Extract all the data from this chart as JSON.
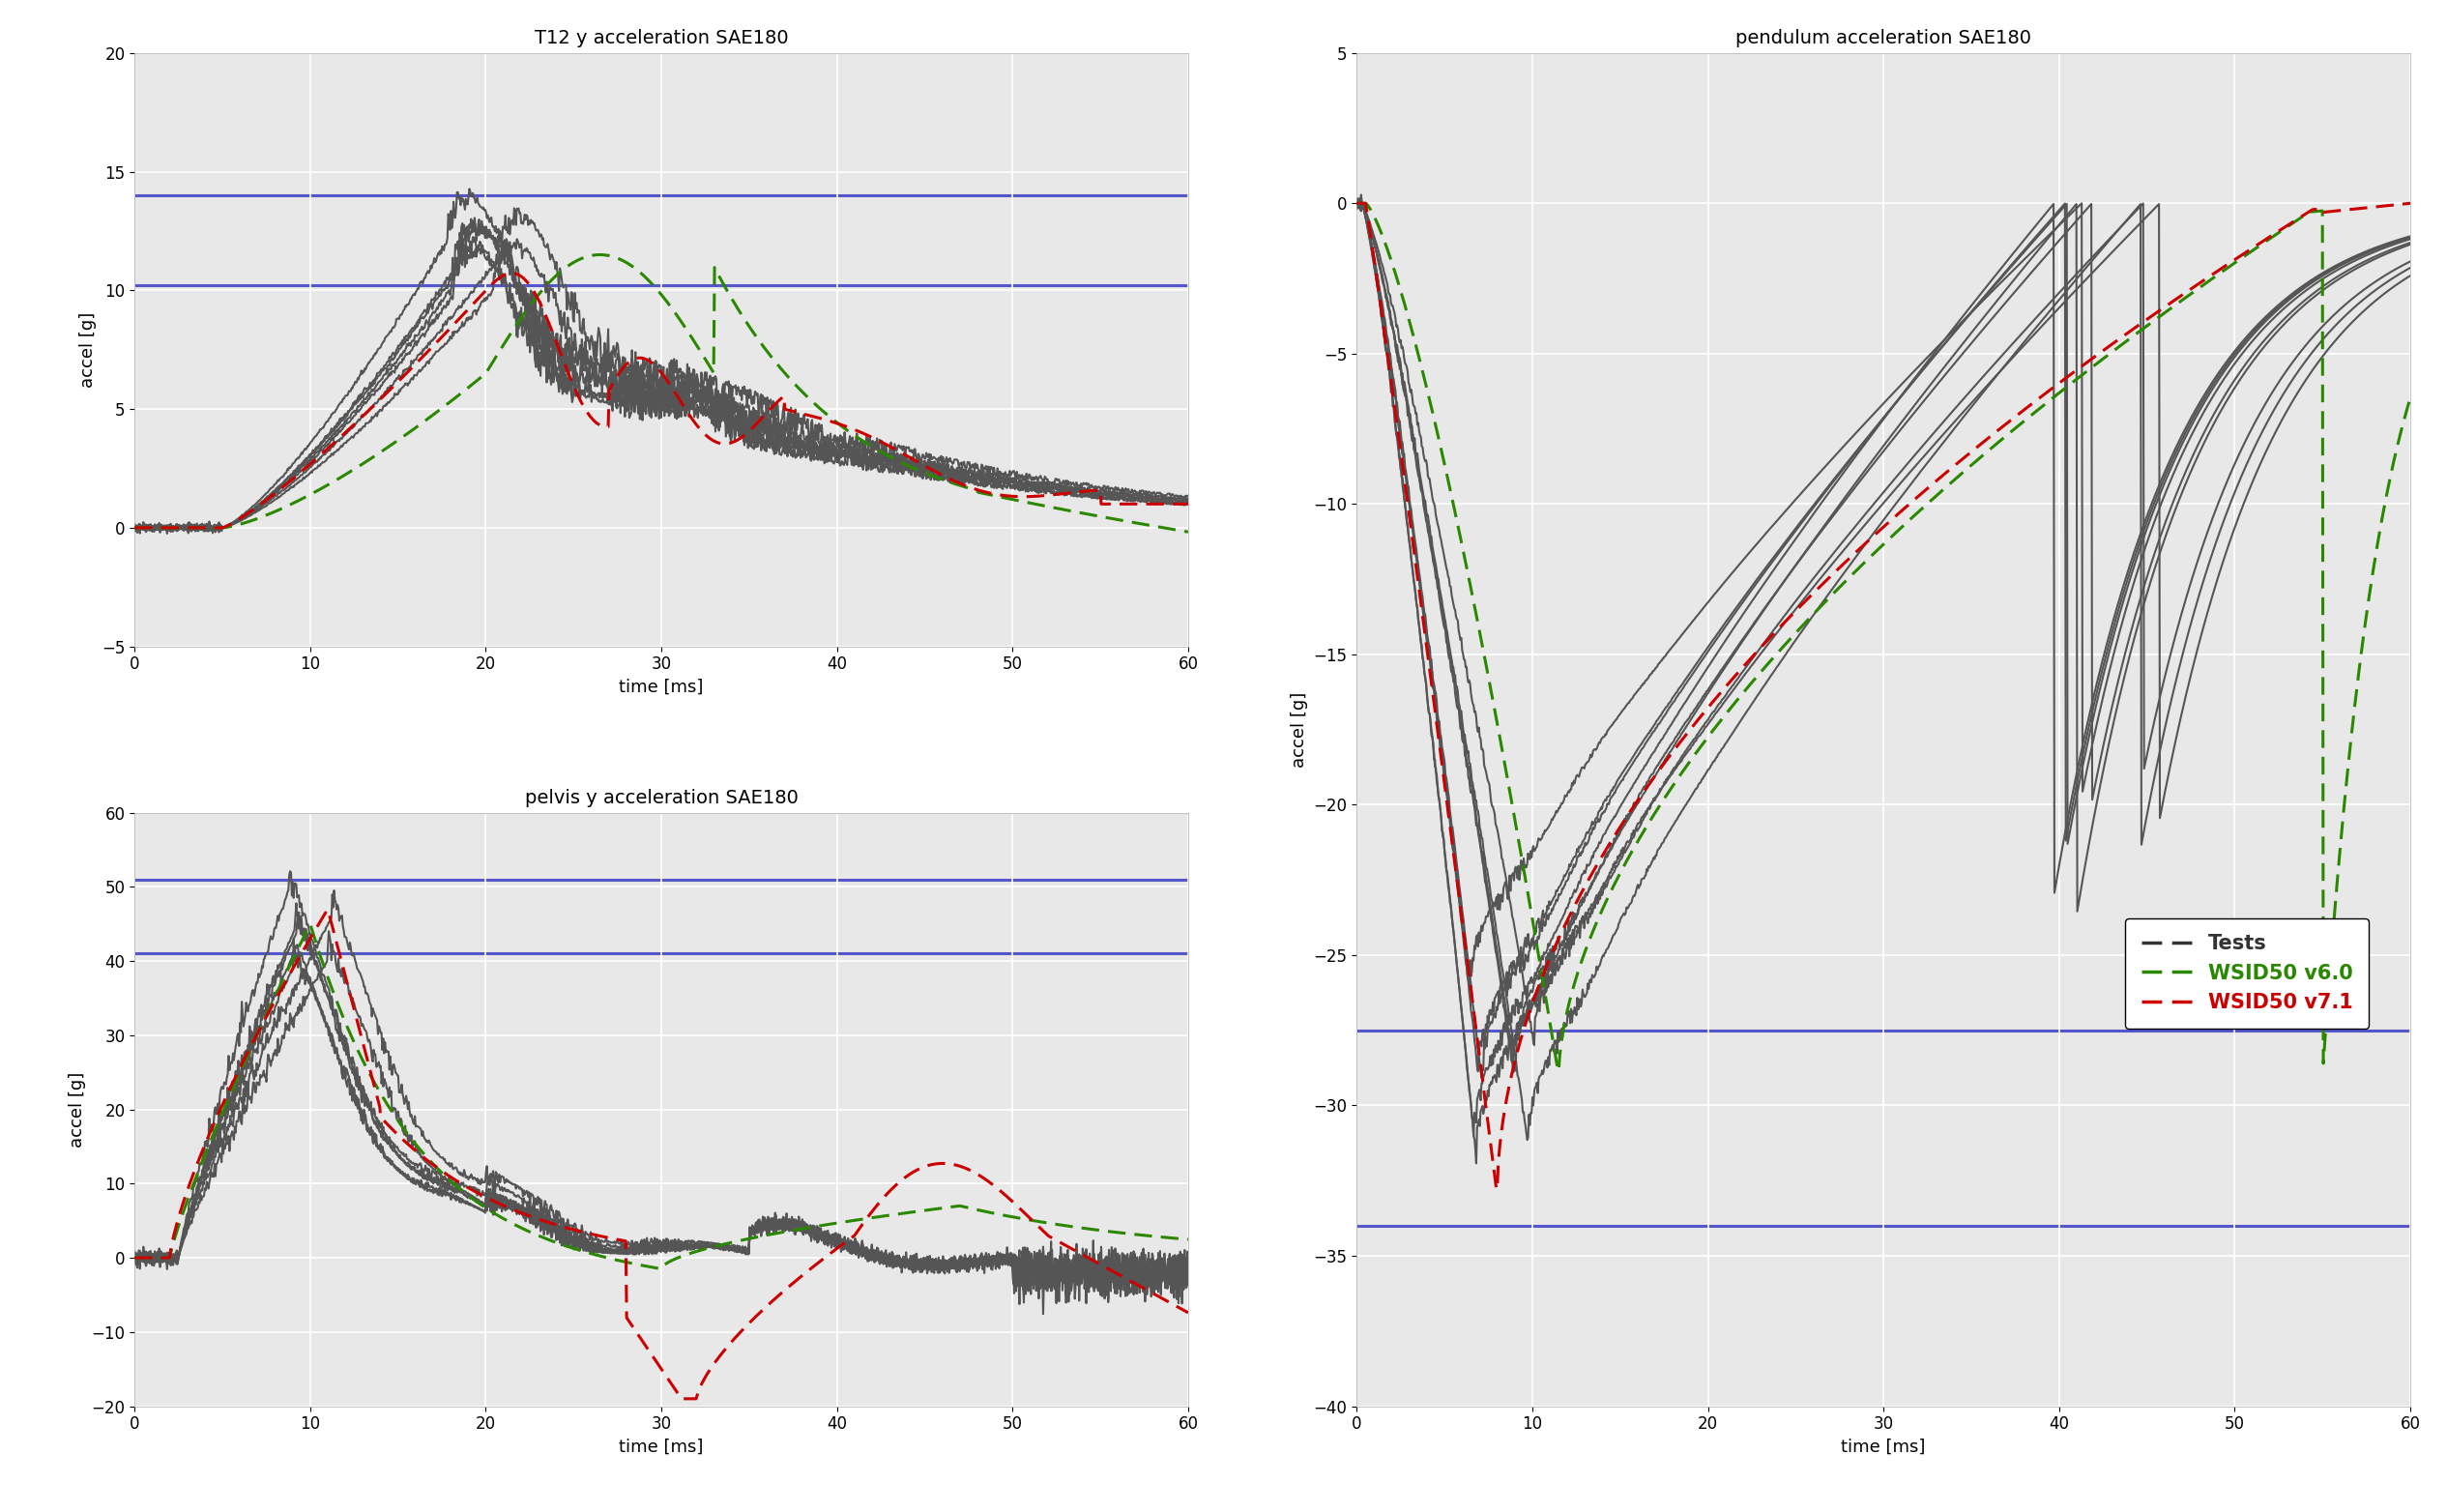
{
  "title_t12": "T12 y acceleration SAE180",
  "title_pelvis": "pelvis y acceleration SAE180",
  "title_pendulum": "pendulum acceleration SAE180",
  "xlabel": "time [ms]",
  "ylabel": "accel [g]",
  "t12_ylim": [
    -5,
    20
  ],
  "t12_yticks": [
    -5,
    0,
    5,
    10,
    15,
    20
  ],
  "t12_hlines": [
    10.2,
    14.0
  ],
  "pelvis_ylim": [
    -20,
    60
  ],
  "pelvis_yticks": [
    -20,
    -10,
    0,
    10,
    20,
    30,
    40,
    50,
    60
  ],
  "pelvis_hlines": [
    41.0,
    51.0
  ],
  "pendulum_ylim": [
    -40,
    5
  ],
  "pendulum_yticks": [
    -40,
    -35,
    -30,
    -25,
    -20,
    -15,
    -10,
    -5,
    0,
    5
  ],
  "pendulum_hlines": [
    -27.5,
    -34.0
  ],
  "xlim": [
    0,
    60
  ],
  "xticks": [
    0,
    10,
    20,
    30,
    40,
    50,
    60
  ],
  "gray_color": "#555555",
  "green_color": "#2a8800",
  "red_color": "#cc0000",
  "blue_hline_color": "#5555cc",
  "bg_color": "#e8e8e8",
  "legend_labels": [
    "Tests",
    "WSID50 v6.0",
    "WSID50 v7.1"
  ],
  "legend_colors": [
    "#333333",
    "#2a8800",
    "#cc0000"
  ],
  "n_gray_t12": 7,
  "n_gray_pelvis": 7,
  "n_gray_pendulum": 9
}
